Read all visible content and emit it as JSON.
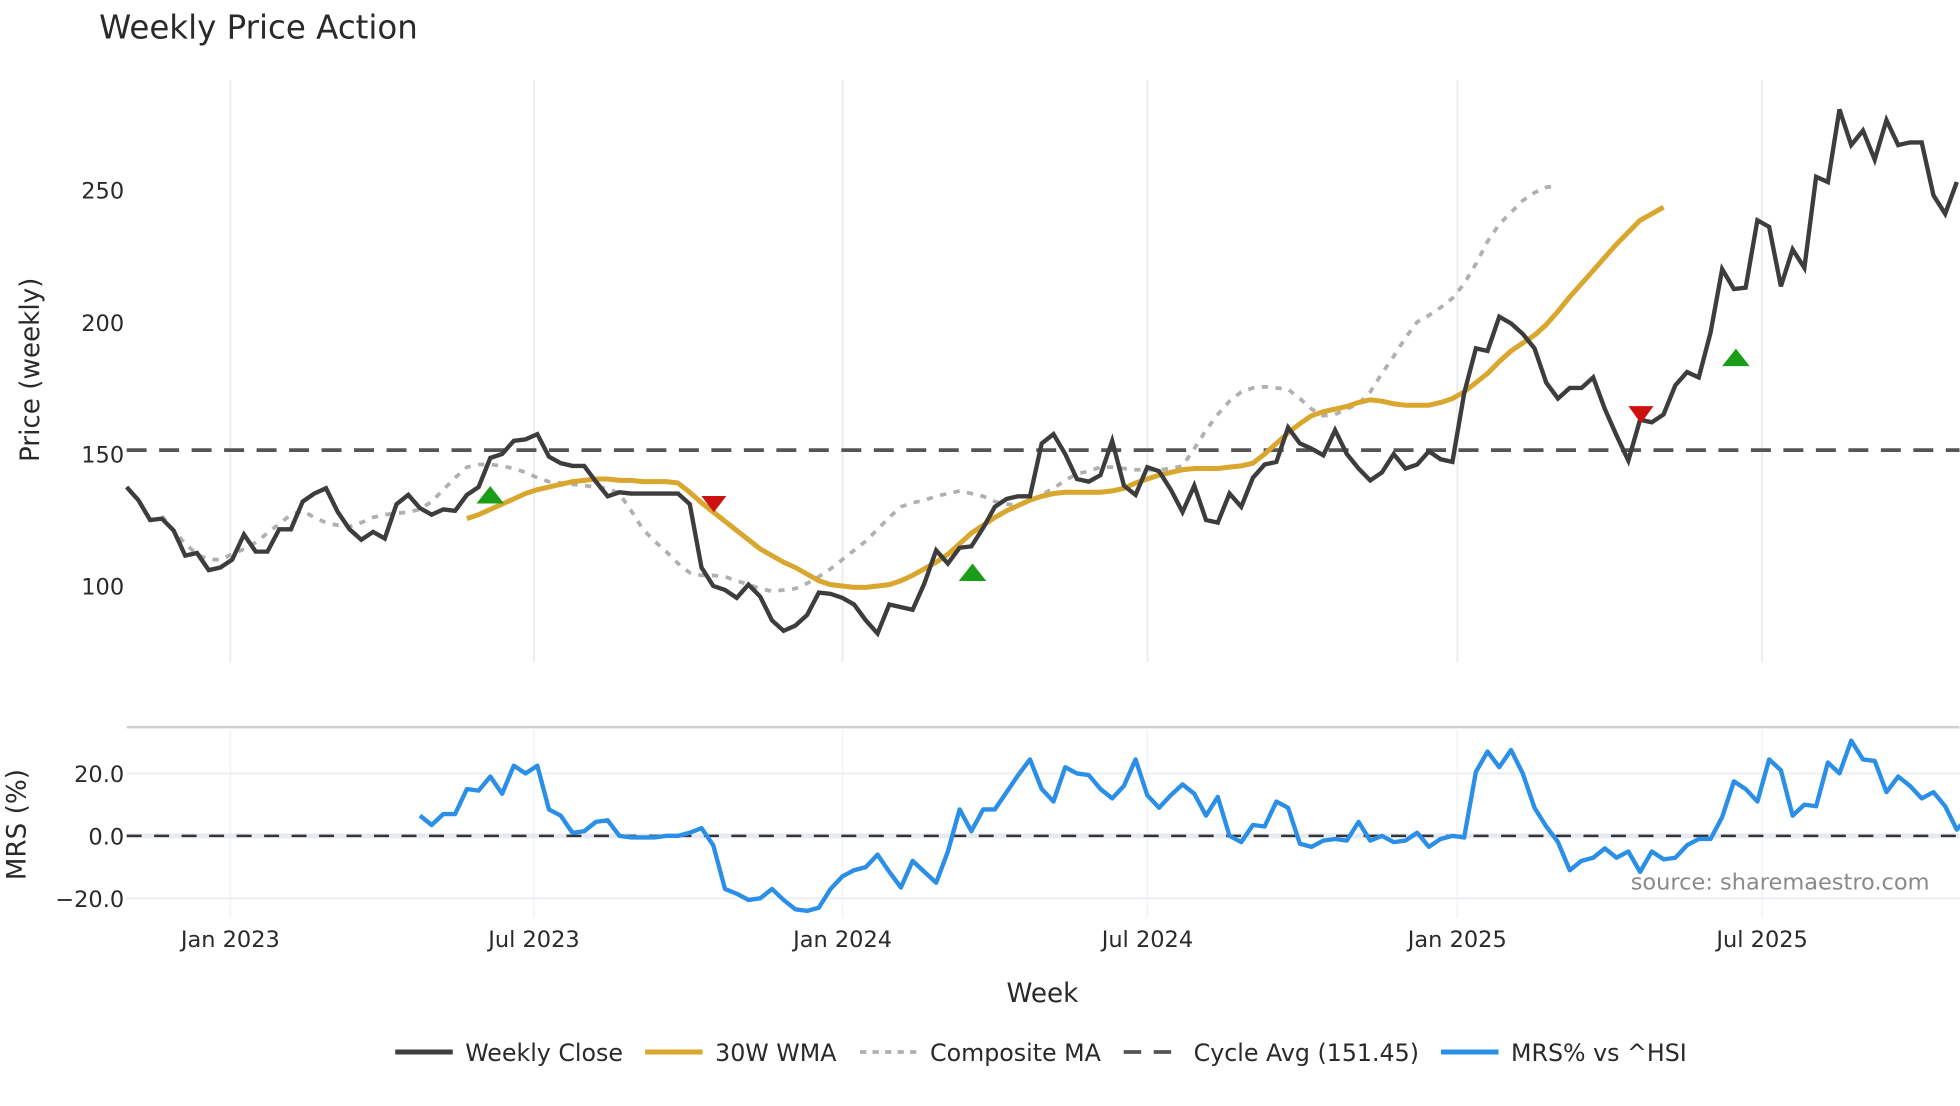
{
  "chart_data": [
    {
      "type": "line",
      "title": "Weekly Price Action",
      "xlabel": "Week",
      "ylabel": "Price (weekly)",
      "ylim": [
        70,
        292
      ],
      "yticks": [
        100,
        150,
        200,
        250
      ],
      "xticks": [
        "Jan 2023",
        "Jul 2023",
        "Jan 2024",
        "Jul 2024",
        "Jan 2025",
        "Jul 2025"
      ],
      "grid": true,
      "legend_position": "bottom",
      "x_range": [
        "Nov 2022",
        "Oct 2025"
      ],
      "series": [
        {
          "name": "Weekly Close",
          "color": "#3d3d3d",
          "values": [
            137.5,
            132.5,
            125,
            125.5,
            121,
            111.5,
            112.5,
            106,
            107,
            110,
            119.5,
            113,
            113,
            121.5,
            121.5,
            132,
            135,
            137,
            128,
            121.5,
            117.5,
            120.5,
            118,
            131,
            134.5,
            129.5,
            127,
            129,
            128.5,
            134.5,
            137.5,
            148.5,
            150,
            155,
            155.5,
            157.5,
            149,
            146.5,
            145.5,
            145.5,
            139.5,
            134,
            135.5,
            135,
            135,
            135,
            135,
            135,
            131,
            107,
            100,
            98.5,
            95.5,
            100.5,
            96,
            87,
            83,
            85,
            89,
            97.5,
            97,
            95.5,
            93,
            87,
            82,
            93,
            92,
            91,
            101,
            113.5,
            108.5,
            114.5,
            115,
            122,
            130,
            133,
            134,
            134,
            154,
            157.5,
            150,
            140.5,
            139.5,
            142,
            155,
            138,
            134.5,
            145,
            143.5,
            136.5,
            128,
            138,
            125,
            124,
            135,
            130,
            141,
            146,
            147,
            160,
            154,
            152,
            149.5,
            159,
            150,
            144.5,
            140,
            143,
            150,
            144.5,
            146,
            151,
            148,
            147,
            173,
            190,
            189,
            202,
            199.5,
            195.5,
            190,
            177,
            171,
            175,
            175,
            179,
            167,
            157,
            147.5,
            163,
            162,
            165,
            176,
            181,
            179,
            196,
            220,
            212.5,
            213,
            238.5,
            236,
            213.5,
            227.5,
            220.5,
            255,
            253,
            280.5,
            267,
            272.5,
            261.5,
            276.5,
            267,
            268,
            268,
            248,
            241,
            253
          ]
        },
        {
          "name": "30W WMA",
          "color": "#d9a62e",
          "start_week": 29,
          "values": [
            125.5,
            127,
            129,
            131,
            133,
            135,
            136.5,
            137.5,
            138.5,
            139.5,
            140,
            140.5,
            140.5,
            140,
            140,
            139.5,
            139.5,
            139.5,
            139,
            135.5,
            131.5,
            128,
            124.5,
            121,
            117.5,
            114,
            111.5,
            109,
            107,
            104.5,
            102,
            100.5,
            100,
            99.5,
            99.5,
            100,
            100.5,
            102,
            104,
            106.5,
            109,
            112,
            116,
            120,
            123,
            126,
            128.5,
            130.5,
            132.5,
            134,
            135,
            135.5,
            135.5,
            135.5,
            135.5,
            136,
            137,
            139,
            140.5,
            142,
            143,
            144,
            144.5,
            144.5,
            144.5,
            145,
            145.5,
            146.5,
            150,
            154,
            158,
            161.5,
            164.5,
            166,
            167,
            168,
            169.5,
            170.5,
            170,
            169,
            168.5,
            168.5,
            168.5,
            169.5,
            171,
            173.5,
            177,
            180.5,
            185,
            189,
            192,
            195,
            199,
            204,
            209.5,
            214.5,
            219.5,
            224.5,
            229.5,
            234,
            238.5,
            241,
            243.5
          ]
        },
        {
          "name": "Composite MA",
          "color": "#b0b0b0",
          "start_week": 3,
          "values": [
            126.5,
            121,
            116,
            112,
            110,
            110,
            112,
            114,
            116.5,
            120,
            123.5,
            127,
            128.5,
            126,
            124,
            123,
            122.5,
            124,
            126,
            127,
            127.5,
            128,
            129,
            132,
            136.5,
            141,
            145,
            146,
            146,
            145.5,
            144.5,
            143,
            141,
            139.5,
            139,
            138.5,
            138,
            137.5,
            137,
            135,
            128.5,
            121.5,
            117,
            113,
            108.5,
            105,
            104,
            104,
            103.5,
            102,
            100.5,
            99,
            98,
            98.5,
            99,
            101,
            103.5,
            106.5,
            110,
            113.5,
            117,
            121.5,
            126,
            130,
            131.5,
            132.5,
            134,
            135,
            136,
            135,
            134,
            132,
            131,
            130.5,
            132,
            134.5,
            137,
            140,
            142.5,
            143.5,
            145,
            145,
            144.5,
            144,
            144,
            144,
            144.5,
            145.5,
            152,
            159,
            165,
            170,
            173.5,
            175,
            175.5,
            175,
            174.5,
            171,
            167,
            164.5,
            165,
            167,
            169,
            173.5,
            180.5,
            187,
            194,
            200,
            202.5,
            205.5,
            209,
            214.5,
            222,
            230.5,
            237,
            241.5,
            246,
            249,
            251,
            251.5
          ]
        },
        {
          "name": "Cycle Avg (151.45)",
          "color": "#555555",
          "constant": 151.45
        }
      ],
      "markers": [
        {
          "type": "buy",
          "shape": "triangle-up",
          "color": "#1a9e1a",
          "date": "Jun 2023",
          "price": 134
        },
        {
          "type": "sell",
          "shape": "triangle-down",
          "color": "#cc1111",
          "date": "Oct 2023",
          "price": 131
        },
        {
          "type": "buy",
          "shape": "triangle-up",
          "color": "#1a9e1a",
          "date": "Mar 2024",
          "price": 105
        },
        {
          "type": "sell",
          "shape": "triangle-down",
          "color": "#cc1111",
          "date": "Apr 2025",
          "price": 165
        },
        {
          "type": "buy",
          "shape": "triangle-up",
          "color": "#1a9e1a",
          "date": "Jun 2025",
          "price": 186
        }
      ]
    },
    {
      "type": "line",
      "ylabel": "MRS (%)",
      "ylim": [
        -29,
        34
      ],
      "yticks": [
        "-20.0",
        "0.0",
        "20.0"
      ],
      "series": [
        {
          "name": "MRS% vs ^HSI",
          "color": "#2b8fe8",
          "start_week": 25,
          "values": [
            6.5,
            3.5,
            7,
            7,
            15,
            14.5,
            19,
            13.5,
            22.5,
            20,
            22.5,
            8.5,
            6.5,
            1,
            1.5,
            4.5,
            5,
            0,
            -0.5,
            -0.5,
            -0.5,
            0,
            0,
            1,
            2.5,
            -3,
            -17,
            -18.5,
            -20.5,
            -20,
            -17,
            -20.5,
            -23.5,
            -24,
            -23,
            -17,
            -13,
            -11,
            -10,
            -6,
            -11.5,
            -16.5,
            -8,
            -11.5,
            -15,
            -5,
            8.5,
            1.5,
            8.5,
            8.5,
            14,
            19.5,
            24.5,
            15,
            11,
            22,
            20,
            19.5,
            15,
            12,
            16,
            24.5,
            13,
            9,
            13,
            16.5,
            13.5,
            6.5,
            12.5,
            0,
            -2,
            3.5,
            3,
            11,
            9,
            -2.5,
            -3.5,
            -1.5,
            -1,
            -1.5,
            4.5,
            -1.5,
            0,
            -2,
            -1.5,
            1,
            -3.5,
            -1,
            0,
            -0.5,
            20.5,
            27,
            22,
            27.5,
            20,
            9,
            3,
            -2,
            -11,
            -8,
            -7,
            -4,
            -7,
            -5,
            -11.5,
            -5,
            -7.5,
            -7,
            -3,
            -1,
            -1,
            6,
            17.5,
            15,
            11,
            24.5,
            21,
            6.5,
            10,
            9.5,
            23.5,
            20,
            30.5,
            24.5,
            24,
            14,
            19,
            16,
            12,
            14,
            9.5,
            2,
            6
          ]
        },
        {
          "name": "zero-line",
          "color": "#333333",
          "constant": 0
        }
      ]
    }
  ],
  "page": {
    "title": "Weekly Price Action",
    "y_axis_label": "Price (weekly)",
    "mrs_axis_label": "MRS (%)",
    "x_axis_label": "Week",
    "source": "source: sharemaestro.com",
    "price_ticks": [
      "250",
      "200",
      "150",
      "100"
    ],
    "mrs_ticks": [
      "20.0",
      "0.0",
      "−20.0"
    ],
    "x_ticks": [
      "Jan 2023",
      "Jul 2023",
      "Jan 2024",
      "Jul 2024",
      "Jan 2025",
      "Jul 2025"
    ],
    "legend": [
      {
        "label": "Weekly Close",
        "style": "solid",
        "color": "#3d3d3d"
      },
      {
        "label": "30W WMA",
        "style": "solid",
        "color": "#d9a62e"
      },
      {
        "label": "Composite MA",
        "style": "dotted",
        "color": "#b0b0b0"
      },
      {
        "label": "Cycle Avg (151.45)",
        "style": "dashed",
        "color": "#555555"
      },
      {
        "label": "MRS% vs ^HSI",
        "style": "solid",
        "color": "#2b8fe8"
      }
    ]
  }
}
